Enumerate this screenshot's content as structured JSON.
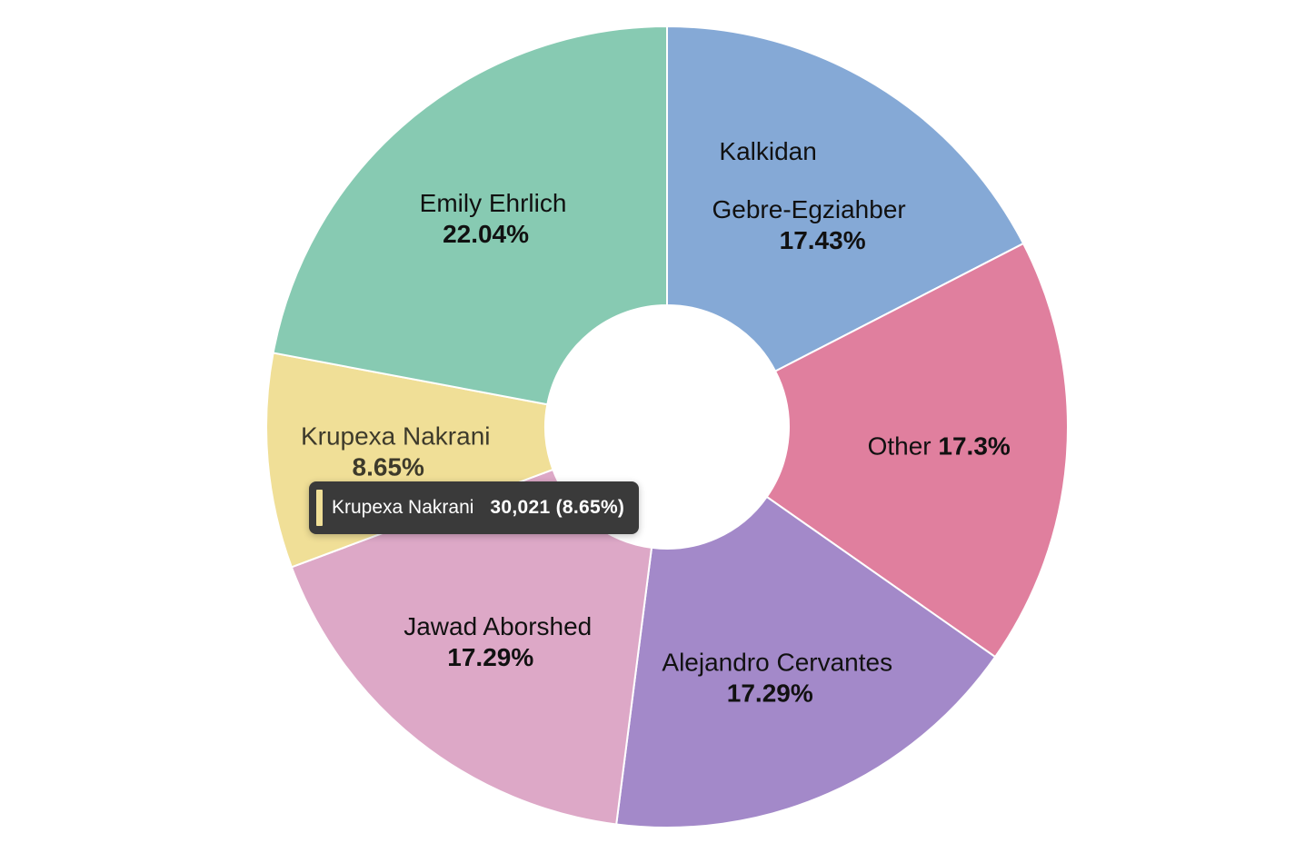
{
  "chart_data": {
    "type": "pie",
    "donut": true,
    "title": "",
    "slices": [
      {
        "label": "Kalkidan Gebre-Egziahber",
        "label_lines": [
          "Kalkidan",
          "Gebre-Egziahber"
        ],
        "percent": 17.43,
        "percent_label": "17.43%",
        "color": "#85a9d6"
      },
      {
        "label": "Other",
        "label_lines": [
          "Other"
        ],
        "percent": 17.3,
        "percent_label": "17.3%",
        "color": "#e07f9e"
      },
      {
        "label": "Alejandro Cervantes",
        "label_lines": [
          "Alejandro Cervantes"
        ],
        "percent": 17.29,
        "percent_label": "17.29%",
        "color": "#a389c9"
      },
      {
        "label": "Jawad Aborshed",
        "label_lines": [
          "Jawad Aborshed"
        ],
        "percent": 17.29,
        "percent_label": "17.29%",
        "color": "#dda8c7"
      },
      {
        "label": "Krupexa Nakrani",
        "label_lines": [
          "Krupexa Nakrani"
        ],
        "percent": 8.65,
        "percent_label": "8.65%",
        "color": "#f0df97"
      },
      {
        "label": "Emily Ehrlich",
        "label_lines": [
          "Emily Ehrlich"
        ],
        "percent": 22.04,
        "percent_label": "22.04%",
        "color": "#87cab2"
      }
    ],
    "legend": "none"
  },
  "tooltip": {
    "name": "Krupexa Nakrani",
    "value": "30,021 (8.65%)",
    "color": "#f0df97"
  }
}
